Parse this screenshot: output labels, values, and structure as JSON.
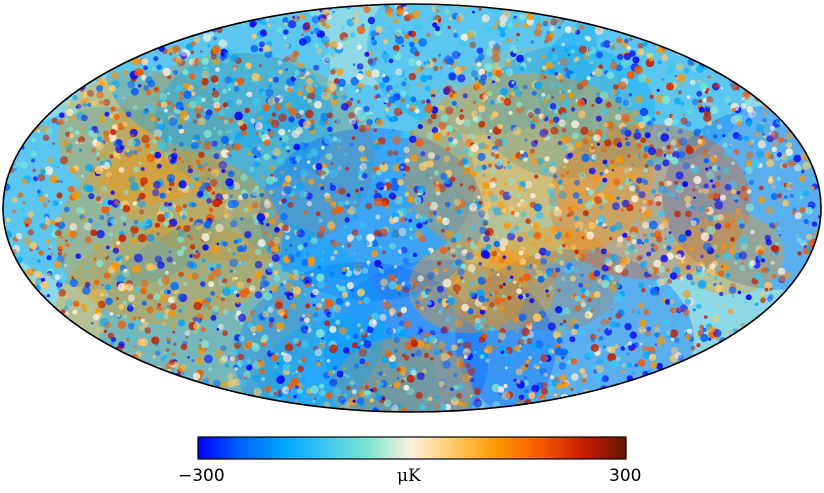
{
  "colorbar": {
    "min_label": "−300",
    "max_label": "300",
    "unit_label": "μK",
    "min_value": -300,
    "max_value": 300,
    "colors": [
      "#0000ff",
      "#0064ff",
      "#00a5ff",
      "#3cc8f0",
      "#82e6d2",
      "#fff0dc",
      "#ffc864",
      "#ff9600",
      "#f55a00",
      "#c81e00",
      "#641400"
    ]
  },
  "map": {
    "projection": "mollweide",
    "outline_color": "#000000",
    "description_icon": "cmb-temperature-anisotropy-map"
  }
}
